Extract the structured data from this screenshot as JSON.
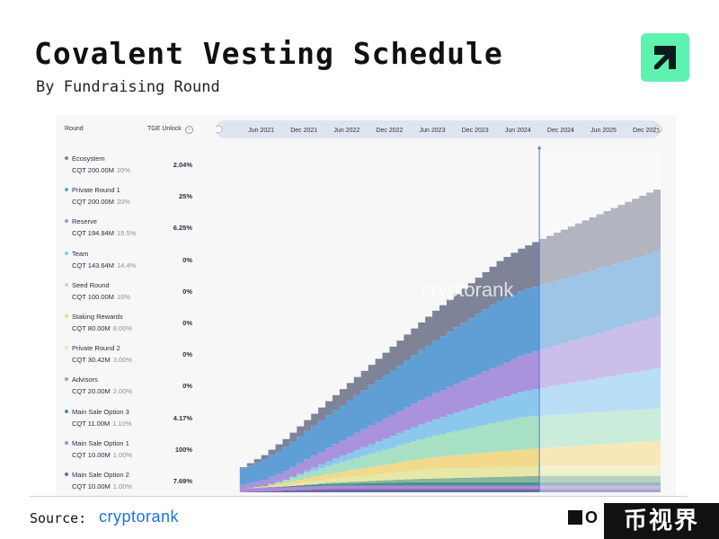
{
  "header": {
    "title": "Covalent Vesting Schedule",
    "subtitle": "By Fundraising Round"
  },
  "legend_headers": {
    "round": "Round",
    "tge": "TGE Unlock"
  },
  "footer": {
    "source_label": "Source:",
    "source_brand": "cryptorank",
    "corner_mark": "O",
    "badge_text": "币视界"
  },
  "watermark": "cryptorank",
  "chart_data": {
    "type": "area",
    "stacked": true,
    "title": "Covalent Vesting Schedule",
    "subtitle": "By Fundraising Round",
    "x_ticks": [
      "Jun 2021",
      "Dec 2021",
      "Jun 2022",
      "Dec 2022",
      "Jun 2023",
      "Dec 2023",
      "Jun 2024",
      "Dec 2024",
      "Jun 2025",
      "Dec 2025"
    ],
    "x_range": [
      "2020-12",
      "2026-02"
    ],
    "current_date_marker": "2024-09",
    "ylim": [
      0,
      1000
    ],
    "y_unit": "M CQT",
    "series": [
      {
        "name": "Main Sale Option 2",
        "allocation": "CQT 10.00M",
        "share": "1.00%",
        "tge_unlock": "7.69%",
        "color": "#6d6aa8",
        "final": 10
      },
      {
        "name": "Main Sale Option 1",
        "allocation": "CQT 10.00M",
        "share": "1.00%",
        "tge_unlock": "100%",
        "color": "#b089d8",
        "final": 10
      },
      {
        "name": "Main Sale Option 3",
        "allocation": "CQT 11.00M",
        "share": "1.10%",
        "tge_unlock": "4.17%",
        "color": "#4a8f8c",
        "final": 11
      },
      {
        "name": "Advisors",
        "allocation": "CQT 20.00M",
        "share": "2.00%",
        "tge_unlock": "0%",
        "color": "#8ab59a",
        "final": 20
      },
      {
        "name": "Private Round 2",
        "allocation": "CQT 30.42M",
        "share": "3.00%",
        "tge_unlock": "0%",
        "color": "#e6e8a8",
        "final": 30.42
      },
      {
        "name": "Staking Rewards",
        "allocation": "CQT 80.00M",
        "share": "8.00%",
        "tge_unlock": "0%",
        "color": "#f2d98c",
        "final": 80
      },
      {
        "name": "Seed Round",
        "allocation": "CQT 100.00M",
        "share": "10%",
        "tge_unlock": "0%",
        "color": "#a8e0c4",
        "final": 100
      },
      {
        "name": "Team",
        "allocation": "CQT 143.64M",
        "share": "14.4%",
        "tge_unlock": "0%",
        "color": "#8cc8ee",
        "final": 143.64
      },
      {
        "name": "Reserve",
        "allocation": "CQT 194.94M",
        "share": "19.5%",
        "tge_unlock": "6.25%",
        "color": "#a893dc",
        "final": 194.94
      },
      {
        "name": "Private Round 1",
        "allocation": "CQT 200.00M",
        "share": "20%",
        "tge_unlock": "25%",
        "color": "#5f9fd6",
        "final": 200
      },
      {
        "name": "Ecosystem",
        "allocation": "CQT 200.00M",
        "share": "20%",
        "tge_unlock": "2.04%",
        "color": "#7f8397",
        "final": 200
      }
    ],
    "legend_order": [
      "Ecosystem",
      "Private Round 1",
      "Reserve",
      "Team",
      "Seed Round",
      "Staking Rewards",
      "Private Round 2",
      "Advisors",
      "Main Sale Option 3",
      "Main Sale Option 1",
      "Main Sale Option 2"
    ],
    "legend_placement": "left"
  }
}
